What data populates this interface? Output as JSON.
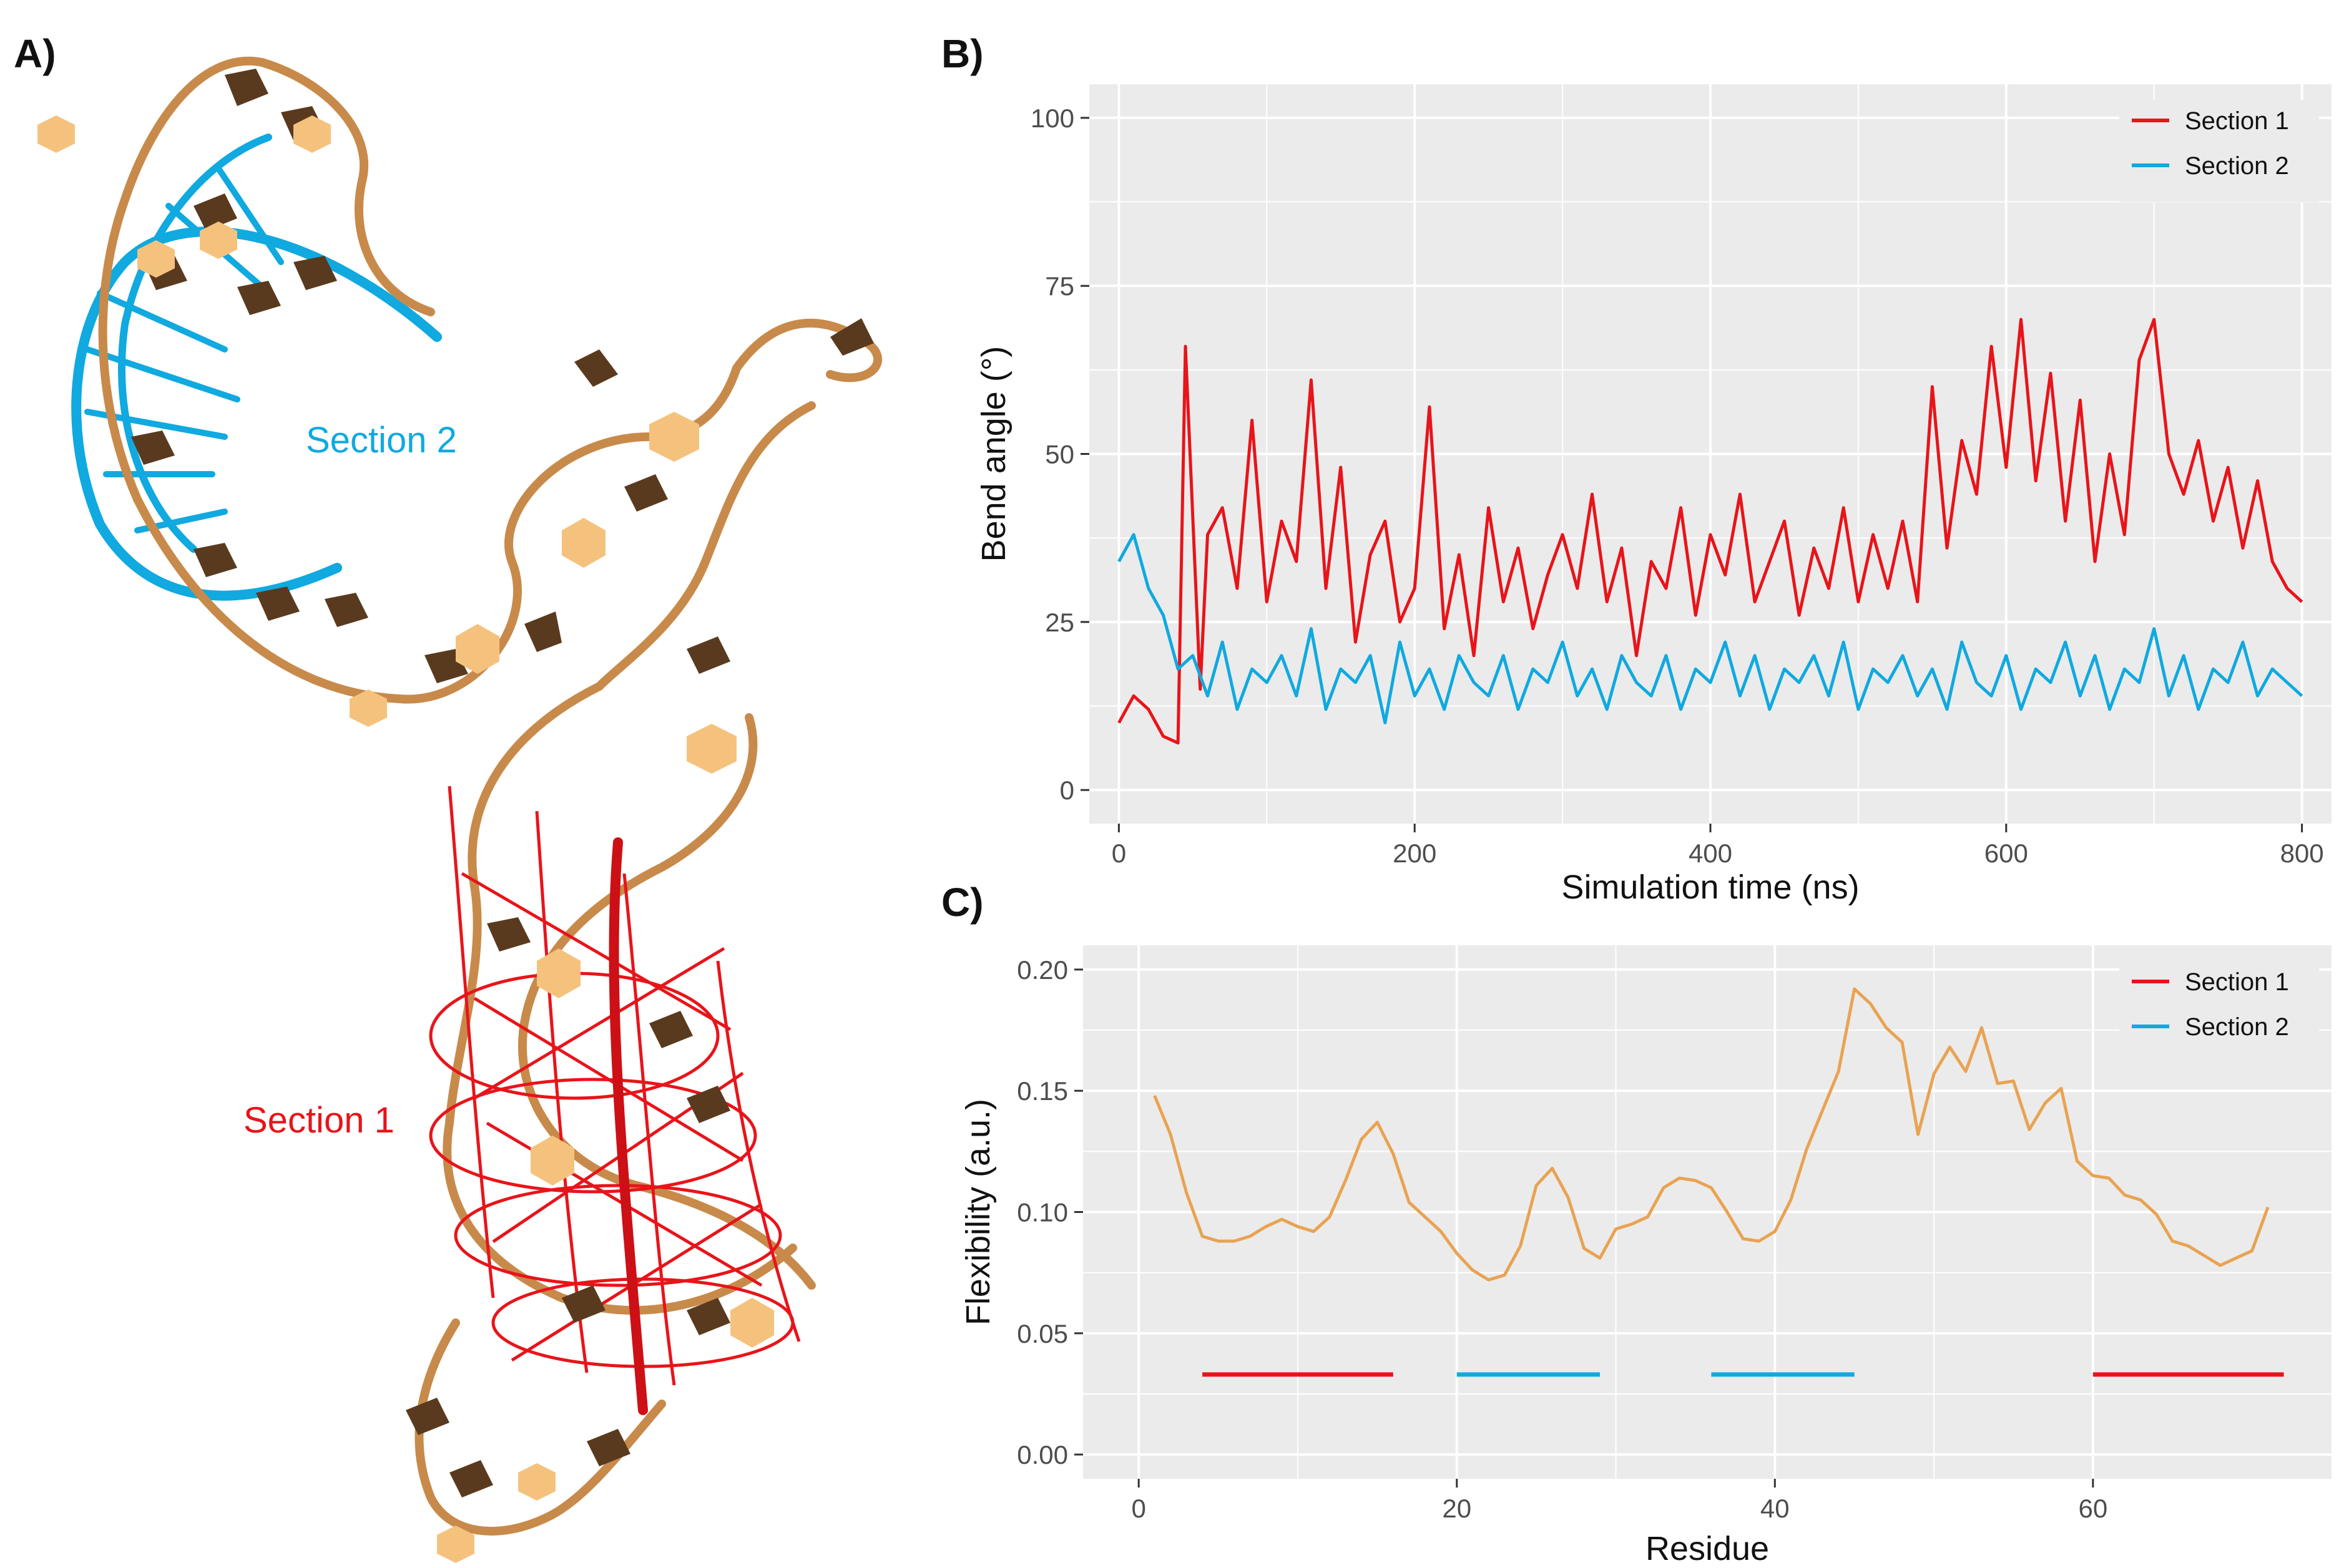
{
  "panels": {
    "a": "A)",
    "b": "B)",
    "c": "C)"
  },
  "colors": {
    "section1": "#e8141a",
    "section2": "#10a9e0",
    "flex": "#e8a352",
    "panel_bg": "#ebebeb",
    "grid": "#ffffff",
    "backbone": "#c88a4a",
    "base_dark": "#5a3a1e",
    "base_light": "#f5c27e"
  },
  "molecule": {
    "section2_label": "Section 2",
    "section1_label": "Section 1"
  },
  "chart_data": [
    {
      "id": "B",
      "type": "line",
      "xlabel": "Simulation time (ns)",
      "ylabel": "Bend angle (°)",
      "xlim": [
        -20,
        820
      ],
      "ylim": [
        -5,
        105
      ],
      "xticks": [
        0,
        200,
        400,
        600,
        800
      ],
      "yticks": [
        0,
        25,
        50,
        75,
        100
      ],
      "x_tick_labels": [
        "0",
        "200",
        "400",
        "600",
        "800"
      ],
      "y_tick_labels": [
        "0",
        "25",
        "50",
        "75",
        "100"
      ],
      "grid": true,
      "legend": "top-right",
      "series": [
        {
          "name": "Section 1",
          "color": "#e8141a",
          "x": [
            0,
            10,
            20,
            30,
            40,
            45,
            55,
            60,
            70,
            80,
            90,
            100,
            110,
            120,
            130,
            140,
            150,
            160,
            170,
            180,
            190,
            200,
            210,
            220,
            230,
            240,
            250,
            260,
            270,
            280,
            290,
            300,
            310,
            320,
            330,
            340,
            350,
            360,
            370,
            380,
            390,
            400,
            410,
            420,
            430,
            440,
            450,
            460,
            470,
            480,
            490,
            500,
            510,
            520,
            530,
            540,
            550,
            560,
            570,
            580,
            590,
            600,
            610,
            620,
            630,
            640,
            650,
            660,
            670,
            680,
            690,
            700,
            710,
            720,
            730,
            740,
            750,
            760,
            770,
            780,
            790,
            800
          ],
          "y": [
            10,
            14,
            12,
            8,
            7,
            66,
            15,
            38,
            42,
            30,
            55,
            28,
            40,
            34,
            61,
            30,
            48,
            22,
            35,
            40,
            25,
            30,
            57,
            24,
            35,
            20,
            42,
            28,
            36,
            24,
            32,
            38,
            30,
            44,
            28,
            36,
            20,
            34,
            30,
            42,
            26,
            38,
            32,
            44,
            28,
            34,
            40,
            26,
            36,
            30,
            42,
            28,
            38,
            30,
            40,
            28,
            60,
            36,
            52,
            44,
            66,
            48,
            70,
            46,
            62,
            40,
            58,
            34,
            50,
            38,
            64,
            70,
            50,
            44,
            52,
            40,
            48,
            36,
            46,
            34,
            30,
            28
          ]
        },
        {
          "name": "Section 2",
          "color": "#10a9e0",
          "x": [
            0,
            10,
            20,
            30,
            40,
            50,
            60,
            70,
            80,
            90,
            100,
            110,
            120,
            130,
            140,
            150,
            160,
            170,
            180,
            190,
            200,
            210,
            220,
            230,
            240,
            250,
            260,
            270,
            280,
            290,
            300,
            310,
            320,
            330,
            340,
            350,
            360,
            370,
            380,
            390,
            400,
            410,
            420,
            430,
            440,
            450,
            460,
            470,
            480,
            490,
            500,
            510,
            520,
            530,
            540,
            550,
            560,
            570,
            580,
            590,
            600,
            610,
            620,
            630,
            640,
            650,
            660,
            670,
            680,
            690,
            700,
            710,
            720,
            730,
            740,
            750,
            760,
            770,
            780,
            790,
            800
          ],
          "y": [
            34,
            38,
            30,
            26,
            18,
            20,
            14,
            22,
            12,
            18,
            16,
            20,
            14,
            24,
            12,
            18,
            16,
            20,
            10,
            22,
            14,
            18,
            12,
            20,
            16,
            14,
            20,
            12,
            18,
            16,
            22,
            14,
            18,
            12,
            20,
            16,
            14,
            20,
            12,
            18,
            16,
            22,
            14,
            20,
            12,
            18,
            16,
            20,
            14,
            22,
            12,
            18,
            16,
            20,
            14,
            18,
            12,
            22,
            16,
            14,
            20,
            12,
            18,
            16,
            22,
            14,
            20,
            12,
            18,
            16,
            24,
            14,
            20,
            12,
            18,
            16,
            22,
            14,
            18,
            16,
            14
          ]
        }
      ]
    },
    {
      "id": "C",
      "type": "line",
      "xlabel": "Residue",
      "ylabel": "Flexibility (a.u.)",
      "xlim": [
        -3.5,
        75
      ],
      "ylim": [
        -0.01,
        0.21
      ],
      "xticks": [
        0,
        20,
        40,
        60
      ],
      "yticks": [
        0.0,
        0.05,
        0.1,
        0.15,
        0.2
      ],
      "x_tick_labels": [
        "0",
        "20",
        "40",
        "60"
      ],
      "y_tick_labels": [
        "0.00",
        "0.05",
        "0.10",
        "0.15",
        "0.20"
      ],
      "grid": true,
      "legend": "top-right",
      "series": [
        {
          "name": "Flexibility",
          "color": "#e8a352",
          "x": [
            1,
            2,
            3,
            4,
            5,
            6,
            7,
            8,
            9,
            10,
            11,
            12,
            13,
            14,
            15,
            16,
            17,
            18,
            19,
            20,
            21,
            22,
            23,
            24,
            25,
            26,
            27,
            28,
            29,
            30,
            31,
            32,
            33,
            34,
            35,
            36,
            37,
            38,
            39,
            40,
            41,
            42,
            43,
            44,
            45,
            46,
            47,
            48,
            49,
            50,
            51,
            52,
            53,
            54,
            55,
            56,
            57,
            58,
            59,
            60,
            61,
            62,
            63,
            64,
            65,
            66,
            67,
            68,
            69,
            70,
            71
          ],
          "y": [
            0.148,
            0.132,
            0.108,
            0.09,
            0.088,
            0.088,
            0.09,
            0.094,
            0.097,
            0.094,
            0.092,
            0.098,
            0.113,
            0.13,
            0.137,
            0.124,
            0.104,
            0.098,
            0.092,
            0.083,
            0.076,
            0.072,
            0.074,
            0.086,
            0.111,
            0.118,
            0.106,
            0.085,
            0.081,
            0.093,
            0.095,
            0.098,
            0.11,
            0.114,
            0.113,
            0.11,
            0.1,
            0.089,
            0.088,
            0.092,
            0.105,
            0.126,
            0.142,
            0.158,
            0.192,
            0.186,
            0.176,
            0.17,
            0.132,
            0.157,
            0.168,
            0.158,
            0.176,
            0.153,
            0.154,
            0.134,
            0.145,
            0.151,
            0.121,
            0.115,
            0.114,
            0.107,
            0.105,
            0.099,
            0.088,
            0.086,
            0.082,
            0.078,
            0.081,
            0.084,
            0.102
          ]
        }
      ],
      "segments": [
        {
          "name": "Section 1",
          "color": "#e8141a",
          "from": 4,
          "to": 16,
          "y": 0.033
        },
        {
          "name": "Section 2",
          "color": "#10a9e0",
          "from": 20,
          "to": 29,
          "y": 0.033
        },
        {
          "name": "Section 2",
          "color": "#10a9e0",
          "from": 36,
          "to": 45,
          "y": 0.033
        },
        {
          "name": "Section 1",
          "color": "#e8141a",
          "from": 60,
          "to": 72,
          "y": 0.033
        }
      ],
      "legend_entries": [
        {
          "name": "Section 1",
          "color": "#e8141a"
        },
        {
          "name": "Section 2",
          "color": "#10a9e0"
        }
      ]
    }
  ]
}
